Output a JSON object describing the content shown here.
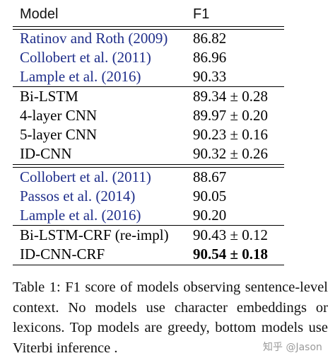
{
  "table": {
    "headers": {
      "model": "Model",
      "f1": "F1"
    },
    "groups": [
      {
        "rows": [
          {
            "model": "Ratinov and Roth (2009)",
            "f1": "86.82",
            "citation": true,
            "bold": false
          },
          {
            "model": "Collobert et al. (2011)",
            "f1": "86.96",
            "citation": true,
            "bold": false
          },
          {
            "model": "Lample et al. (2016)",
            "f1": "90.33",
            "citation": true,
            "bold": false
          }
        ]
      },
      {
        "rows": [
          {
            "model": "Bi-LSTM",
            "f1": "89.34 ± 0.28",
            "citation": false,
            "bold": false
          },
          {
            "model": "4-layer CNN",
            "f1": "89.97 ± 0.20",
            "citation": false,
            "bold": false
          },
          {
            "model": "5-layer CNN",
            "f1": "90.23 ± 0.16",
            "citation": false,
            "bold": false
          },
          {
            "model": "ID-CNN",
            "f1": "90.32 ± 0.26",
            "citation": false,
            "bold": false
          }
        ]
      },
      {
        "rows": [
          {
            "model": "Collobert et al. (2011)",
            "f1": "88.67",
            "citation": true,
            "bold": false
          },
          {
            "model": "Passos et al. (2014)",
            "f1": "90.05",
            "citation": true,
            "bold": false
          },
          {
            "model": "Lample et al. (2016)",
            "f1": "90.20",
            "citation": true,
            "bold": false
          }
        ]
      },
      {
        "rows": [
          {
            "model": "Bi-LSTM-CRF (re-impl)",
            "f1": "90.43 ± 0.12",
            "citation": false,
            "bold": false
          },
          {
            "model": "ID-CNN-CRF",
            "f1": "90.54 ± 0.18",
            "citation": false,
            "bold": true
          }
        ]
      }
    ]
  },
  "caption": "Table 1: F1 score of models observing sentence-level context.  No models use character embeddings or lexicons. Top models are greedy, bottom models use Viterbi inference .",
  "watermark": "知乎 @Jason",
  "colors": {
    "citation": "#1f2e8a",
    "text": "#000000",
    "watermark": "#9a9a9a"
  }
}
